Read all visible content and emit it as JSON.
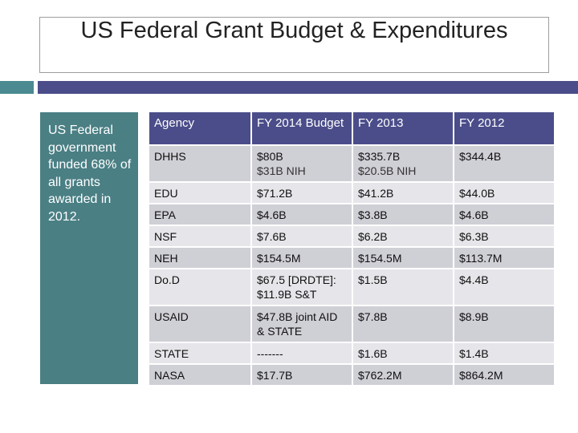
{
  "slide": {
    "title": "US Federal Grant Budget & Expenditures",
    "sidebar_text": "US Federal government funded 68% of all grants awarded in 2012.",
    "colors": {
      "header": "#4b4d8a",
      "sidebar": "#4a7f84",
      "row_dark": "#cfcfd6",
      "row_light": "#e6e6ea"
    }
  },
  "table": {
    "headers": [
      "Agency",
      "FY 2014 Budget",
      "FY 2013",
      "FY 2012"
    ],
    "rows": [
      {
        "agency": "DHHS",
        "fy2014": "$80B",
        "fy2014_extra": "$31B NIH",
        "fy2013": "$335.7B",
        "fy2013_extra": "$20.5B NIH",
        "fy2012": "$344.4B"
      },
      {
        "agency": "EDU",
        "fy2014": "$71.2B",
        "fy2013": "$41.2B",
        "fy2012": "$44.0B"
      },
      {
        "agency": "EPA",
        "fy2014": "$4.6B",
        "fy2013": "$3.8B",
        "fy2012": "$4.6B"
      },
      {
        "agency": "NSF",
        "fy2014": "$7.6B",
        "fy2013": "$6.2B",
        "fy2012": "$6.3B"
      },
      {
        "agency": "NEH",
        "fy2014": "$154.5M",
        "fy2013": "$154.5M",
        "fy2012": "$113.7M"
      },
      {
        "agency": "Do.D",
        "fy2014": "$67.5 [DRDTE]: $11.9B S&T",
        "fy2013": "$1.5B",
        "fy2012": "$4.4B"
      },
      {
        "agency": "USAID",
        "fy2014": "$47.8B joint AID & STATE",
        "fy2013": "$7.8B",
        "fy2012": "$8.9B"
      },
      {
        "agency": "STATE",
        "fy2014": "-------",
        "fy2013": "$1.6B",
        "fy2012": "$1.4B"
      },
      {
        "agency": "NASA",
        "fy2014": "$17.7B",
        "fy2013": "$762.2M",
        "fy2012": "$864.2M"
      }
    ]
  }
}
